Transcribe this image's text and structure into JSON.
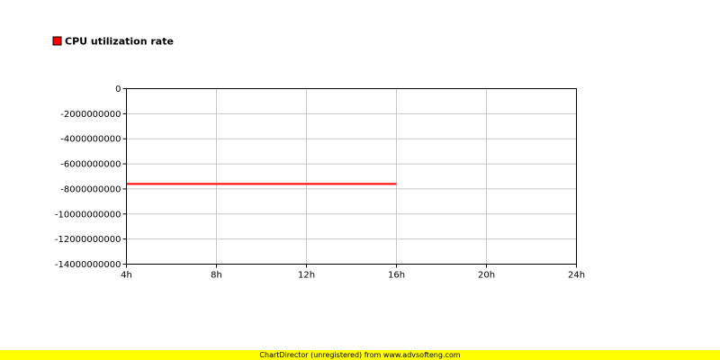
{
  "chart_data": {
    "type": "line",
    "title": "",
    "xlabel": "",
    "ylabel": "",
    "x_ticks": [
      "4h",
      "8h",
      "12h",
      "16h",
      "20h",
      "24h"
    ],
    "y_ticks": [
      "0",
      "-2000000000",
      "-4000000000",
      "-6000000000",
      "-8000000000",
      "-10000000000",
      "-12000000000",
      "-14000000000"
    ],
    "xlim": [
      4,
      24
    ],
    "ylim": [
      -14000000000,
      0
    ],
    "grid": true,
    "legend_position": "top-left",
    "series": [
      {
        "name": "CPU utilization rate",
        "color": "#ff0000",
        "points": [
          {
            "x": 4,
            "y": -7600000000
          },
          {
            "x": 16,
            "y": -7600000000
          }
        ]
      }
    ]
  },
  "footer": {
    "text": "ChartDirector (unregistered) from www.advsofteng.com",
    "color": "#ffff00"
  }
}
